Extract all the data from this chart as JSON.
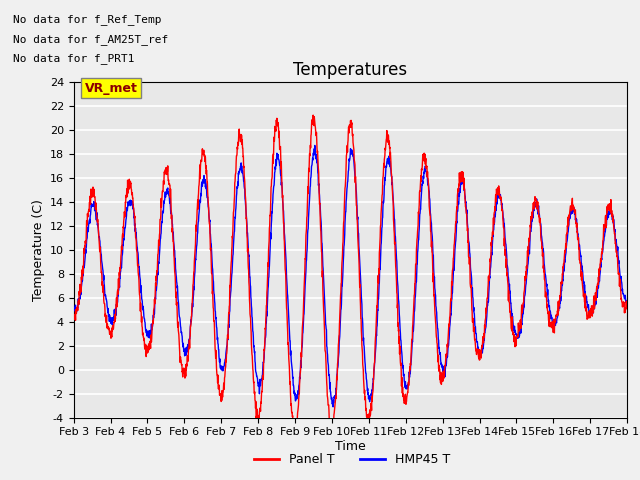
{
  "title": "Temperatures",
  "xlabel": "Time",
  "ylabel": "Temperature (C)",
  "ylim": [
    -4,
    24
  ],
  "xlim": [
    0,
    15
  ],
  "xtick_labels": [
    "Feb 3",
    "Feb 4",
    "Feb 5",
    "Feb 6",
    "Feb 7",
    "Feb 8",
    "Feb 9",
    "Feb 10",
    "Feb 11",
    "Feb 12",
    "Feb 13",
    "Feb 14",
    "Feb 15",
    "Feb 16",
    "Feb 17",
    "Feb 18"
  ],
  "xtick_positions": [
    0,
    1,
    2,
    3,
    4,
    5,
    6,
    7,
    8,
    9,
    10,
    11,
    12,
    13,
    14,
    15
  ],
  "ytick_positions": [
    -4,
    -2,
    0,
    2,
    4,
    6,
    8,
    10,
    12,
    14,
    16,
    18,
    20,
    22,
    24
  ],
  "legend_labels": [
    "Panel T",
    "HMP45 T"
  ],
  "no_data_texts": [
    "No data for f_Ref_Temp",
    "No data for f_AM25T_ref",
    "No data for f_PRT1"
  ],
  "panel_color": "red",
  "hmp45_color": "blue",
  "ax_bg_color": "#e8e8e8",
  "fig_bg_color": "#f0f0f0",
  "grid_color": "white",
  "title_fontsize": 12
}
